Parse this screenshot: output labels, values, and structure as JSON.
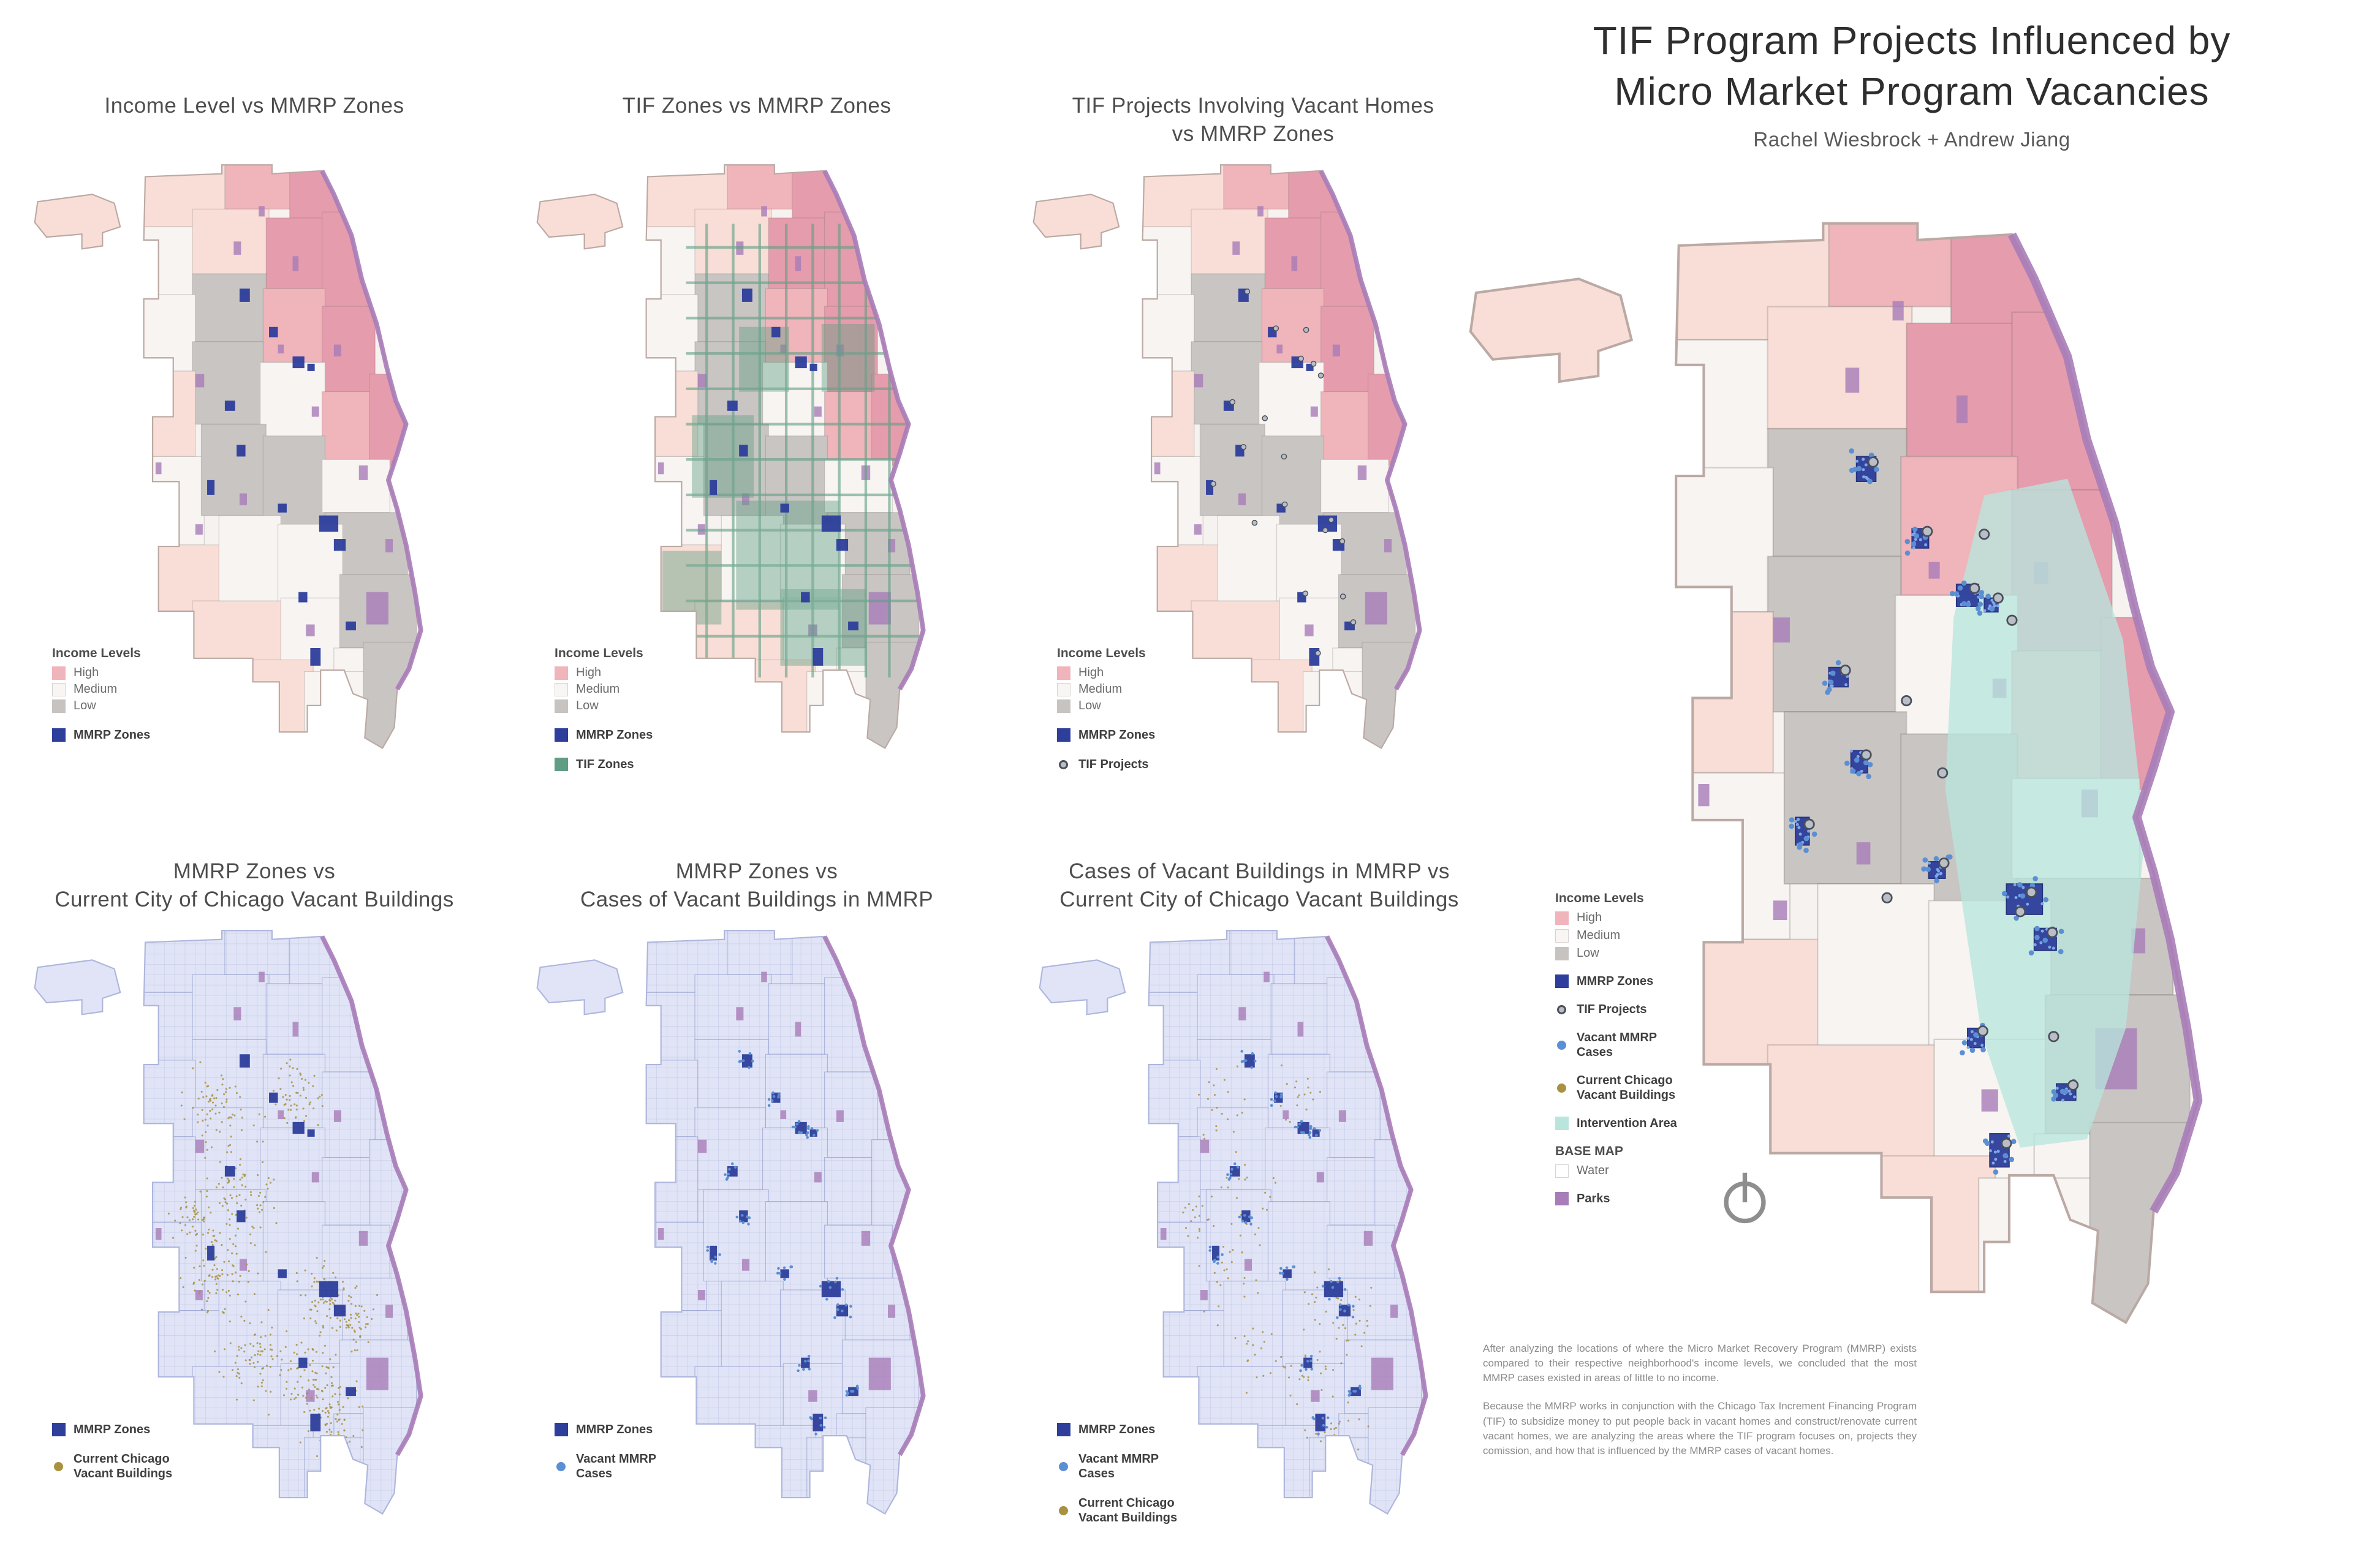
{
  "poster": {
    "title1": "TIF Program Projects Influenced by",
    "title2": "Micro Market Program Vacancies",
    "authors": "Rachel Wiesbrock + Andrew Jiang",
    "para1": "After analyzing the locations of where the Micro Market Recovery Program (MMRP) exists compared to their respective neighborhood's income levels, we concluded that the most MMRP cases existed in areas of little to no income.",
    "para2": "Because the MMRP works in conjunction with the Chicago Tax Increment Financing Program (TIF) to subsidize money to put people back in vacant homes and construct/renovate current vacant homes, we are analyzing the areas where the TIF program focuses on, projects they comission, and how that is influenced by the MMRP cases of vacant homes."
  },
  "maps": [
    {
      "title1": "Income Level vs MMRP Zones",
      "title2": ""
    },
    {
      "title1": "TIF Zones vs MMRP Zones",
      "title2": ""
    },
    {
      "title1": "TIF Projects Involving Vacant Homes",
      "title2": "vs MMRP Zones"
    },
    {
      "title1": "MMRP Zones vs",
      "title2": "Current City of Chicago Vacant Buildings"
    },
    {
      "title1": "MMRP Zones vs",
      "title2": "Cases of Vacant Buildings in MMRP"
    },
    {
      "title1": "Cases of Vacant Buildings in MMRP vs",
      "title2": "Current City of Chicago Vacant Buildings"
    }
  ],
  "labels": {
    "income_levels": "Income Levels",
    "high": "High",
    "medium": "Medium",
    "low": "Low",
    "mmrp_zones": "MMRP Zones",
    "tif_zones": "TIF Zones",
    "tif_projects": "TIF Projects",
    "vacant_mmrp_1": "Vacant MMRP",
    "vacant_mmrp_2": "Cases",
    "vacant_city_1": "Current Chicago",
    "vacant_city_2": "Vacant Buildings",
    "intervention_area": "Intervention Area",
    "base_map": "BASE MAP",
    "water": "Water",
    "parks": "Parks"
  },
  "colors": {
    "income_high": "#f0b4bb",
    "income_high_deep": "#e59cac",
    "income_light_pink": "#f8ded6",
    "income_medium": "#f7f4f2",
    "income_low": "#c9c5c3",
    "mmrp_zone": "#2d3e9b",
    "tif_zone": "#5f9e84",
    "tif_project": "#b9bec7",
    "vacant_mmrp": "#5b8fd4",
    "vacant_city": "#a8923f",
    "intervention": "#b9e5dd",
    "parks": "#a87cb8",
    "base_blue": "#e0e4f6"
  }
}
